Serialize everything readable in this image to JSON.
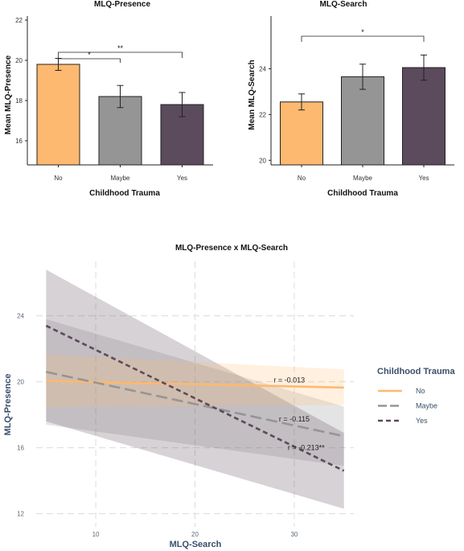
{
  "colors": {
    "no": "#FDB96F",
    "maybe": "#959595",
    "yes": "#5C4A5D"
  },
  "chart_data": [
    {
      "type": "bar",
      "title": "MLQ-Presence",
      "xlabel": "Childhood Trauma",
      "ylabel": "Mean MLQ-Presence",
      "categories": [
        "No",
        "Maybe",
        "Yes"
      ],
      "values": [
        19.8,
        18.2,
        17.8
      ],
      "err": [
        0.3,
        0.55,
        0.6
      ],
      "ylim": [
        14.8,
        22.2
      ],
      "yticks": [
        16,
        18,
        20,
        22
      ],
      "ytick_labels": [
        "16",
        "18",
        "20",
        "22"
      ],
      "significance": [
        {
          "from": 0,
          "to": 1,
          "label": "*"
        },
        {
          "from": 0,
          "to": 2,
          "label": "**"
        }
      ]
    },
    {
      "type": "bar",
      "title": "MLQ-Search",
      "xlabel": "Childhood Trauma",
      "ylabel": "Mean MLQ-Search",
      "categories": [
        "No",
        "Maybe",
        "Yes"
      ],
      "values": [
        22.55,
        23.65,
        24.05
      ],
      "err": [
        0.35,
        0.55,
        0.55
      ],
      "ylim": [
        19.8,
        26.3
      ],
      "yticks": [
        20,
        22,
        24
      ],
      "ytick_labels": [
        "20",
        "22",
        "24"
      ],
      "significance": [
        {
          "from": 0,
          "to": 2,
          "label": "*"
        }
      ]
    },
    {
      "type": "line",
      "title": "MLQ-Presence x MLQ-Search",
      "xlabel": "MLQ-Search",
      "ylabel": "MLQ-Presence",
      "xlim": [
        4,
        36
      ],
      "ylim": [
        11.2,
        27.3
      ],
      "xticks": [
        10,
        20,
        30
      ],
      "xtick_labels": [
        "10",
        "20",
        "30"
      ],
      "yticks": [
        12,
        16,
        20,
        24
      ],
      "ytick_labels": [
        "12",
        "16",
        "20",
        "24"
      ],
      "grid": true,
      "legend": {
        "title": "Childhood Trauma",
        "position": "right"
      },
      "series": [
        {
          "name": "No",
          "color_key": "no",
          "dash": "solid",
          "x": [
            5,
            35
          ],
          "y": [
            20.05,
            19.65
          ],
          "band_low": [
            18.45,
            18.6
          ],
          "band_high": [
            21.65,
            20.75
          ],
          "label": "r = -0.013",
          "label_x": 29.5,
          "label_y": 19.95
        },
        {
          "name": "Maybe",
          "color_key": "maybe",
          "dash": "long",
          "x": [
            5,
            35
          ],
          "y": [
            20.6,
            16.7
          ],
          "band_low": [
            17.4,
            14.9
          ],
          "band_high": [
            23.8,
            18.5
          ],
          "label": "r = -0.115",
          "label_x": 30,
          "label_y": 17.6
        },
        {
          "name": "Yes",
          "color_key": "yes",
          "dash": "short",
          "x": [
            5,
            35
          ],
          "y": [
            23.4,
            14.6
          ],
          "band_low": [
            17.6,
            12.3
          ],
          "band_high": [
            26.8,
            16.9
          ],
          "label": "r = -0.213**",
          "label_x": 31.2,
          "label_y": 15.85
        }
      ]
    }
  ]
}
